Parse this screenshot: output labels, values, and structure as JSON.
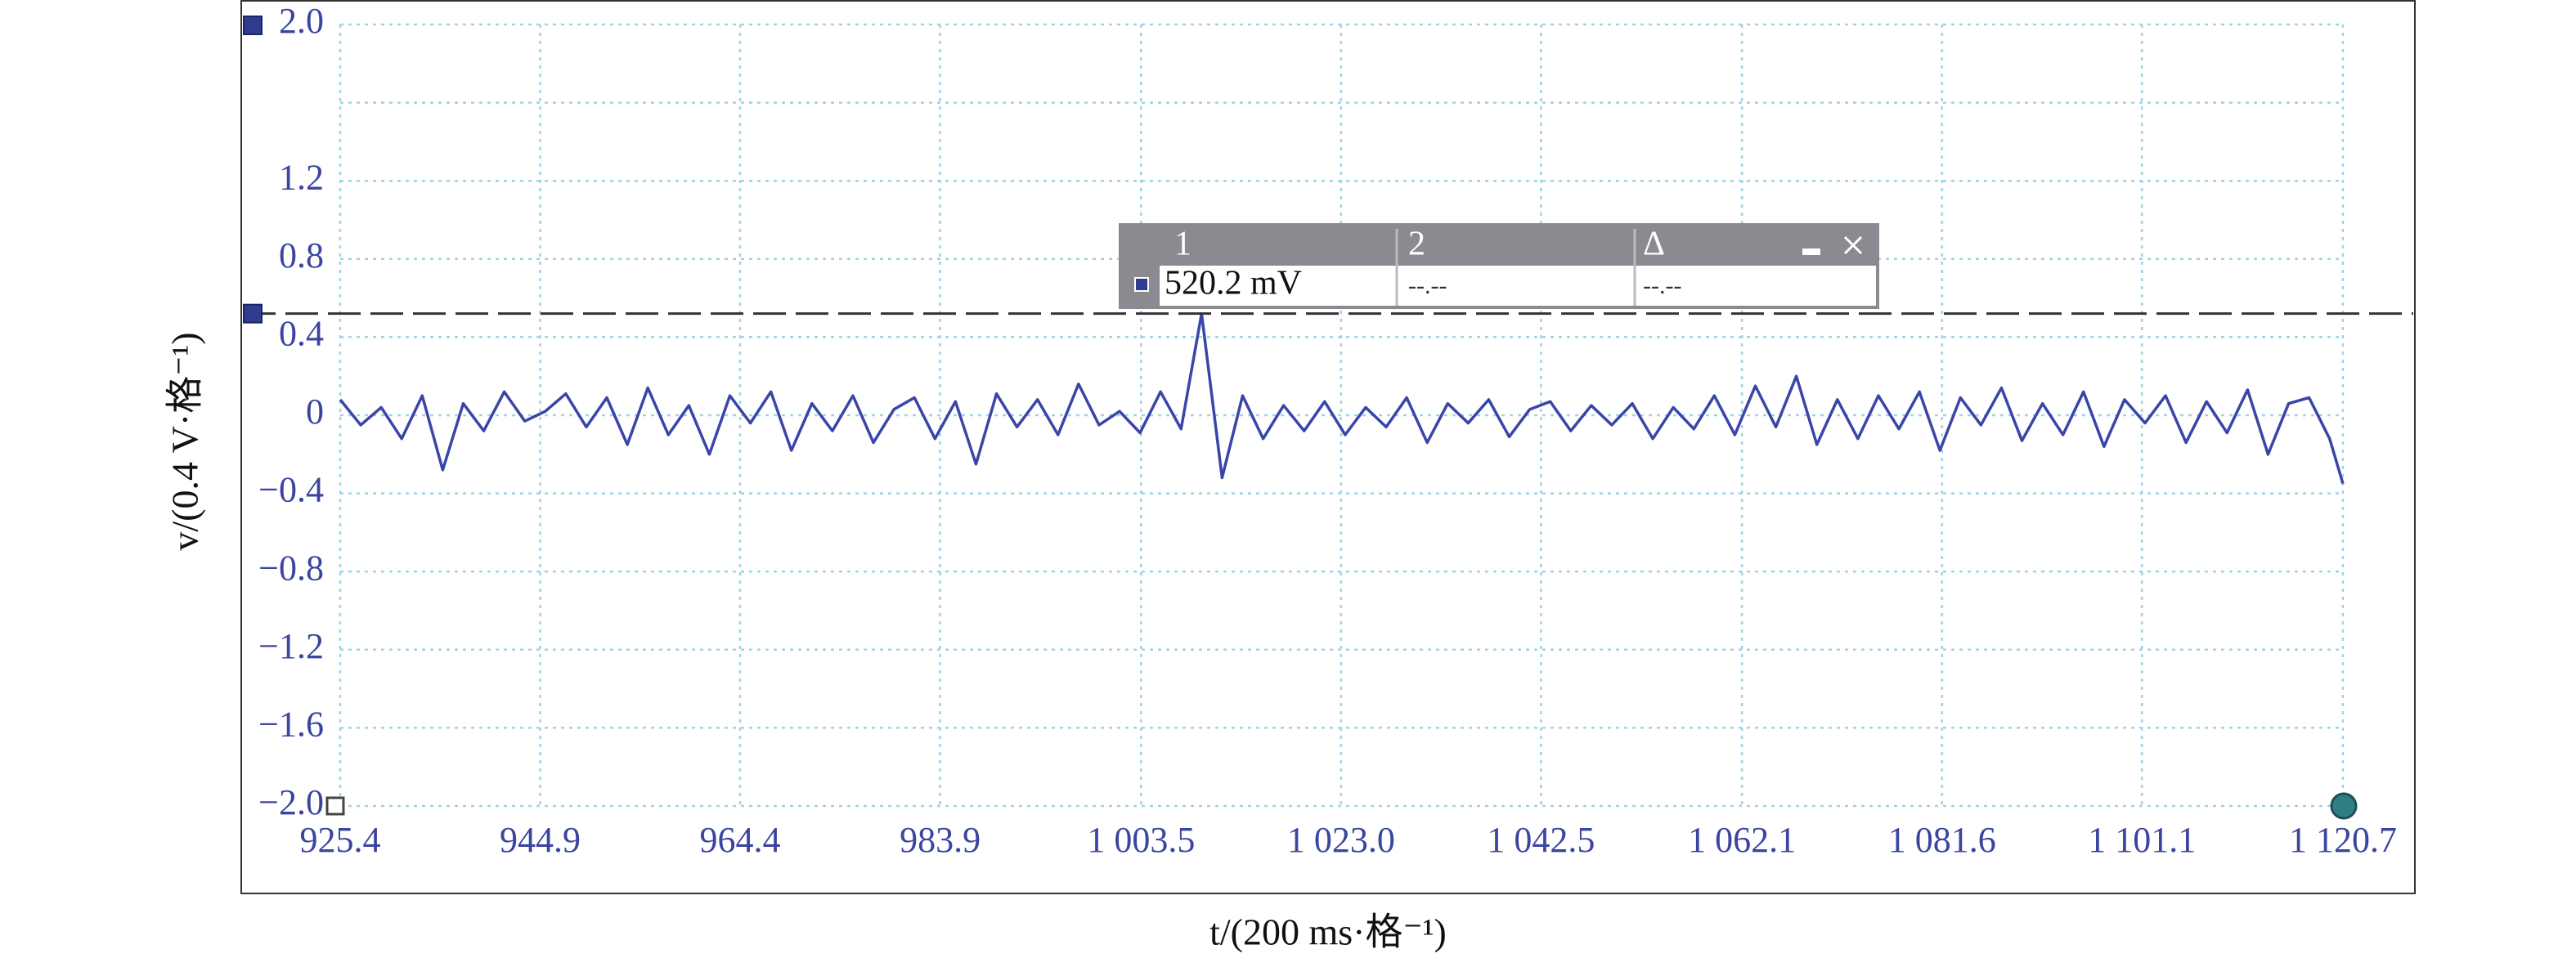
{
  "chart_data": {
    "type": "line",
    "y_label": "v/(0.4 V·格⁻¹)",
    "x_label": "t/(200 ms·格⁻¹)",
    "xlim": [
      925.4,
      1120.7
    ],
    "ylim": [
      -2.0,
      2.0
    ],
    "xticks": [
      925.4,
      944.9,
      964.4,
      983.9,
      {
        "value": 1003.5,
        "label": "1 003.5"
      },
      {
        "value": 1023.0,
        "label": "1 023.0"
      },
      {
        "value": 1042.5,
        "label": "1 042.5"
      },
      {
        "value": 1062.1,
        "label": "1 062.1"
      },
      {
        "value": 1081.6,
        "label": "1 081.6"
      },
      {
        "value": 1101.1,
        "label": "1 101.1"
      },
      {
        "value": 1120.7,
        "label": "1 120.7"
      }
    ],
    "yticks": [
      {
        "value": 2.0,
        "label": "2.0"
      },
      {
        "value": 1.6,
        "label": null
      },
      1.2,
      0.8,
      0.4,
      0,
      {
        "value": -0.4,
        "label": "−0.4"
      },
      {
        "value": -0.8,
        "label": "−0.8"
      },
      {
        "value": -1.2,
        "label": "−1.2"
      },
      {
        "value": -1.6,
        "label": "−1.6"
      },
      {
        "value": -2.0,
        "label": "−2.0"
      }
    ],
    "grid": true,
    "cursor": {
      "value": 0.5202,
      "label": "520.2 mV"
    },
    "cursor_table": {
      "headers": [
        "1",
        "2",
        "Δ"
      ],
      "row": [
        "--.--",
        "--.--"
      ]
    },
    "x": [
      925.4,
      927.4,
      929.4,
      931.4,
      933.4,
      935.4,
      937.4,
      939.4,
      941.4,
      943.4,
      945.4,
      947.4,
      949.4,
      951.4,
      953.4,
      955.4,
      957.4,
      959.4,
      961.4,
      963.4,
      965.4,
      967.4,
      969.4,
      971.4,
      973.4,
      975.4,
      977.4,
      979.4,
      981.4,
      983.4,
      985.4,
      987.4,
      989.4,
      991.4,
      993.4,
      995.4,
      997.4,
      999.4,
      1001.4,
      1003.4,
      1005.4,
      1007.4,
      1009.4,
      1011.4,
      1013.4,
      1015.4,
      1017.4,
      1019.4,
      1021.4,
      1023.4,
      1025.4,
      1027.4,
      1029.4,
      1031.4,
      1033.4,
      1035.4,
      1037.4,
      1039.4,
      1041.4,
      1043.4,
      1045.4,
      1047.4,
      1049.4,
      1051.4,
      1053.4,
      1055.4,
      1057.4,
      1059.4,
      1061.4,
      1063.4,
      1065.4,
      1067.4,
      1069.4,
      1071.4,
      1073.4,
      1075.4,
      1077.4,
      1079.4,
      1081.4,
      1083.4,
      1085.4,
      1087.4,
      1089.4,
      1091.4,
      1093.4,
      1095.4,
      1097.4,
      1099.4,
      1101.4,
      1103.4,
      1105.4,
      1107.4,
      1109.4,
      1111.4,
      1113.4,
      1115.4,
      1117.4,
      1119.4,
      1120.7
    ],
    "series": [
      {
        "color": "#3a45a8",
        "values": [
          0.08,
          -0.05,
          0.04,
          -0.12,
          0.1,
          -0.28,
          0.06,
          -0.08,
          0.12,
          -0.03,
          0.02,
          0.11,
          -0.06,
          0.09,
          -0.15,
          0.14,
          -0.1,
          0.05,
          -0.2,
          0.1,
          -0.04,
          0.12,
          -0.18,
          0.06,
          -0.08,
          0.1,
          -0.14,
          0.03,
          0.09,
          -0.12,
          0.07,
          -0.25,
          0.11,
          -0.06,
          0.08,
          -0.1,
          0.16,
          -0.05,
          0.02,
          -0.09,
          0.12,
          -0.07,
          0.52,
          -0.32,
          0.1,
          -0.12,
          0.05,
          -0.08,
          0.07,
          -0.1,
          0.04,
          -0.06,
          0.09,
          -0.14,
          0.06,
          -0.04,
          0.08,
          -0.11,
          0.03,
          0.07,
          -0.08,
          0.05,
          -0.05,
          0.06,
          -0.12,
          0.04,
          -0.07,
          0.1,
          -0.1,
          0.15,
          -0.06,
          0.2,
          -0.15,
          0.08,
          -0.12,
          0.1,
          -0.07,
          0.12,
          -0.18,
          0.09,
          -0.05,
          0.14,
          -0.13,
          0.06,
          -0.1,
          0.12,
          -0.16,
          0.08,
          -0.04,
          0.1,
          -0.14,
          0.07,
          -0.09,
          0.13,
          -0.2,
          0.06,
          0.09,
          -0.12,
          -0.35
        ]
      }
    ]
  }
}
